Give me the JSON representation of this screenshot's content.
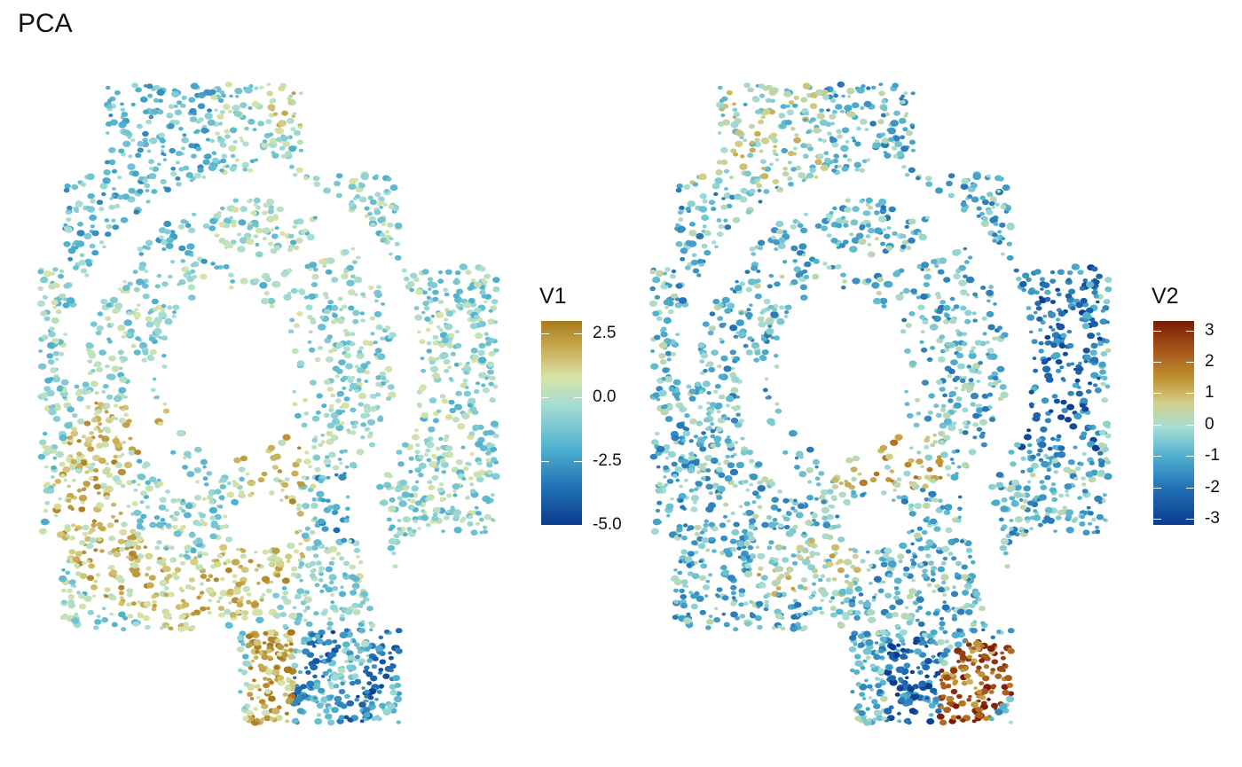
{
  "title": "PCA",
  "chart_data": [
    {
      "type": "heatmap",
      "description_kind": "spatial cell scatter",
      "legend_title": "V1",
      "colorbar": {
        "min": -5.0,
        "max": 3.0,
        "ticks": [
          2.5,
          0.0,
          -2.5,
          -5.0
        ],
        "tick_labels": [
          "2.5",
          "0.0",
          "-2.5",
          "-5.0"
        ],
        "colors": [
          "#0b3b8f",
          "#2472b5",
          "#4fb1cf",
          "#a6ddd4",
          "#d9e3a5",
          "#c8a84e",
          "#a97a1d"
        ],
        "color_stops": [
          -5.0,
          -3.5,
          -2.0,
          -0.3,
          0.8,
          2.0,
          3.0
        ]
      }
    },
    {
      "type": "heatmap",
      "description_kind": "spatial cell scatter",
      "legend_title": "V2",
      "colorbar": {
        "min": -3.2,
        "max": 3.3,
        "ticks": [
          3,
          2,
          1,
          0,
          -1,
          -2,
          -3
        ],
        "tick_labels": [
          "3",
          "2",
          "1",
          "0",
          "-1",
          "-2",
          "-3"
        ],
        "colors": [
          "#0b3b8f",
          "#2472b5",
          "#4fb1cf",
          "#a6ddd4",
          "#d2cf8a",
          "#c0902e",
          "#a4531a",
          "#7a1a05"
        ],
        "color_stops": [
          -3.2,
          -2.0,
          -1.0,
          -0.1,
          0.7,
          1.5,
          2.4,
          3.3
        ]
      }
    }
  ]
}
